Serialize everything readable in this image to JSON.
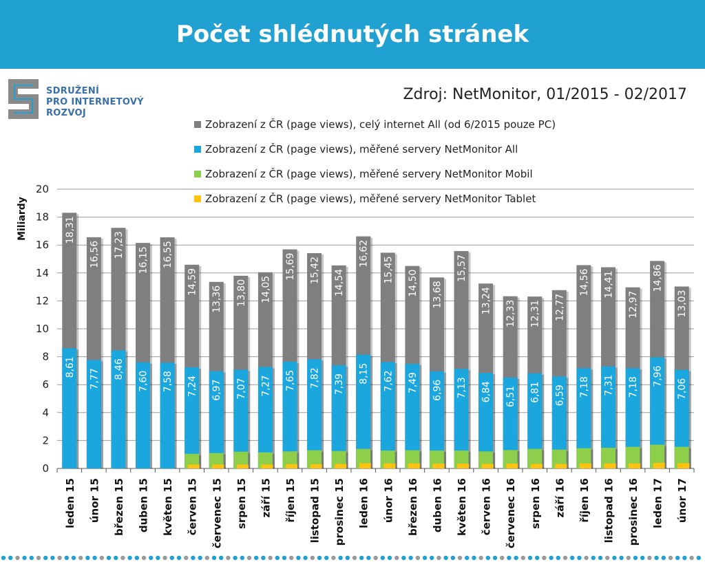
{
  "header": {
    "title": "Počet shlédnutých stránek"
  },
  "logo": {
    "lines": [
      "SDRUŽENÍ",
      "PRO INTERNETOVÝ",
      "ROZVOJ"
    ]
  },
  "source": "Zdroj: NetMonitor, 01/2015 - 02/2017",
  "colors": {
    "header_bg": "#21A0D2",
    "all": "#7F7F7F",
    "netmonitor_all": "#1CA6DE",
    "mobil": "#8DCF4A",
    "tablet": "#FFC20E"
  },
  "chart_data": {
    "type": "bar",
    "ylabel": "Miliardy",
    "ylim": [
      0,
      20
    ],
    "yticks": [
      0,
      2,
      4,
      6,
      8,
      10,
      12,
      14,
      16,
      18,
      20
    ],
    "grid": true,
    "legend_position": "top",
    "categories": [
      "leden 15",
      "únor 15",
      "březen 15",
      "duben 15",
      "květen 15",
      "červen 15",
      "červenec 15",
      "srpen 15",
      "září 15",
      "říjen 15",
      "listopad 15",
      "prosinec 15",
      "leden 16",
      "únor 16",
      "březen 16",
      "duben 16",
      "květen 16",
      "červen 16",
      "červenec 16",
      "srpen 16",
      "září 16",
      "říjen 16",
      "listopad 16",
      "prosinec 16",
      "leden 17",
      "únor 17"
    ],
    "series": [
      {
        "name": "Zobrazení z ČR (page views), celý internet All (od 6/2015 pouze PC)",
        "color": "#7F7F7F",
        "values": [
          18.31,
          16.56,
          17.23,
          16.15,
          16.55,
          14.59,
          13.36,
          13.8,
          14.05,
          15.69,
          15.42,
          14.54,
          16.62,
          15.45,
          14.5,
          13.68,
          15.57,
          13.24,
          12.33,
          12.31,
          12.77,
          14.56,
          14.41,
          12.97,
          14.86,
          13.03
        ],
        "labels": [
          "18,31",
          "16,56",
          "17,23",
          "16,15",
          "16,55",
          "14,59",
          "13,36",
          "13,80",
          "14,05",
          "15,69",
          "15,42",
          "14,54",
          "16,62",
          "15,45",
          "14,50",
          "13,68",
          "15,57",
          "13,24",
          "12,33",
          "12,31",
          "12,77",
          "14,56",
          "14,41",
          "12,97",
          "14,86",
          "13,03"
        ]
      },
      {
        "name": "Zobrazení z ČR (page views), měřené servery NetMonitor All",
        "color": "#1CA6DE",
        "values": [
          8.61,
          7.77,
          8.46,
          7.6,
          7.58,
          7.24,
          6.97,
          7.07,
          7.27,
          7.65,
          7.82,
          7.39,
          8.15,
          7.62,
          7.49,
          6.96,
          7.13,
          6.84,
          6.51,
          6.81,
          6.59,
          7.18,
          7.31,
          7.18,
          7.96,
          7.06
        ],
        "labels": [
          "8,61",
          "7,77",
          "8,46",
          "7,60",
          "7,58",
          "7,24",
          "6,97",
          "7,07",
          "7,27",
          "7,65",
          "7,82",
          "7,39",
          "8,15",
          "7,62",
          "7,49",
          "6,96",
          "7,13",
          "6,84",
          "6,51",
          "6,81",
          "6,59",
          "7,18",
          "7,31",
          "7,18",
          "7,96",
          "7,06"
        ]
      },
      {
        "name": "Zobrazení z ČR (page views), měřené servery NetMonitor Mobil",
        "color": "#8DCF4A",
        "values": [
          null,
          null,
          null,
          null,
          null,
          1.05,
          1.1,
          1.2,
          1.15,
          1.22,
          1.3,
          1.25,
          1.4,
          1.28,
          1.3,
          1.28,
          1.28,
          1.22,
          1.32,
          1.4,
          1.35,
          1.45,
          1.48,
          1.55,
          1.7,
          1.55
        ]
      },
      {
        "name": "Zobrazení z ČR (page views), měřené servery NetMonitor Tablet",
        "color": "#FFC20E",
        "values": [
          null,
          null,
          null,
          null,
          null,
          0.28,
          0.28,
          0.28,
          0.28,
          0.3,
          0.3,
          0.32,
          0.38,
          0.36,
          0.36,
          0.34,
          0.34,
          0.32,
          0.34,
          0.32,
          0.32,
          0.36,
          0.36,
          0.36,
          0.4,
          0.38
        ]
      }
    ]
  }
}
